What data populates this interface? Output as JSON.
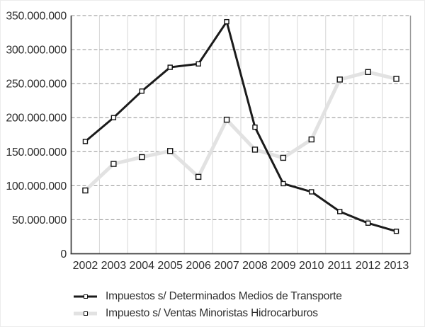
{
  "chart_data": {
    "type": "line",
    "title": "",
    "xlabel": "",
    "ylabel": "",
    "categories": [
      "2002",
      "2003",
      "2004",
      "2005",
      "2006",
      "2007",
      "2008",
      "2009",
      "2010",
      "2011",
      "2012",
      "2013"
    ],
    "series": [
      {
        "name": "Impuestos s/ Determinados Medios de Transporte",
        "color": "#1b1b1b",
        "line_width": 3,
        "marker": "square",
        "marker_size": 6,
        "values": [
          165000000,
          200000000,
          239000000,
          274000000,
          279000000,
          341000000,
          186000000,
          103000000,
          91000000,
          62000000,
          45000000,
          33000000
        ]
      },
      {
        "name": "Impuesto s/ Ventas Minoristas Hidrocarburos",
        "color": "#e2e2e2",
        "line_width": 5,
        "marker": "square",
        "marker_size": 7,
        "values": [
          93000000,
          132000000,
          142000000,
          151000000,
          113000000,
          197000000,
          153000000,
          141000000,
          168000000,
          256000000,
          267000000,
          257000000
        ]
      }
    ],
    "ylim": [
      0,
      350000000
    ],
    "ytick_step": 50000000,
    "ytick_labels": [
      "0",
      "50.000.000",
      "100.000.000",
      "150.000.000",
      "200.000.000",
      "250.000.000",
      "300.000.000",
      "350.000.000"
    ],
    "grid": {
      "horizontal": "dashed",
      "vertical": "solid"
    },
    "legend_position": "bottom"
  },
  "style": {
    "h_grid_color": "#8f8f8f",
    "v_grid_color": "#d6d6d6",
    "axis_color": "#3c3c3c",
    "plot_right_border_color": "#999999",
    "marker_fill": "#ffffff",
    "marker_stroke": "#111111",
    "text_color": "#2e2e2e",
    "background": "#ffffff"
  }
}
